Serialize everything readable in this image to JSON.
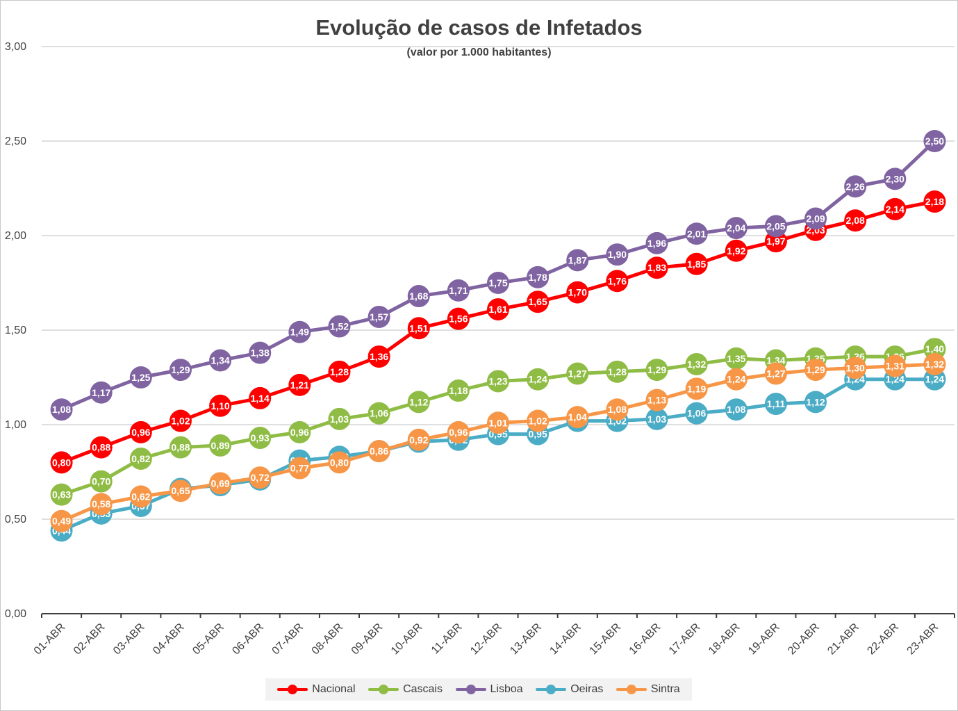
{
  "chart_data": {
    "type": "line",
    "title": "Evolução de casos de Infetados",
    "subtitle": "(valor por  1.000 habitantes)",
    "xlabel": "",
    "ylabel": "",
    "ylim": [
      0,
      3
    ],
    "y_ticks": [
      "0,00",
      "0,50",
      "1,00",
      "1,50",
      "2,00",
      "2,50",
      "3,00"
    ],
    "grid": true,
    "legend_position": "bottom",
    "categories": [
      "01-ABR",
      "02-ABR",
      "03-ABR",
      "04-ABR",
      "05-ABR",
      "06-ABR",
      "07-ABR",
      "08-ABR",
      "09-ABR",
      "10-ABR",
      "11-ABR",
      "12-ABR",
      "13-ABR",
      "14-ABR",
      "15-ABR",
      "16-ABR",
      "17-ABR",
      "18-ABR",
      "19-ABR",
      "20-ABR",
      "21-ABR",
      "22-ABR",
      "23-ABR"
    ],
    "series": [
      {
        "name": "Nacional",
        "color": "#ff0000",
        "values": [
          0.8,
          0.88,
          0.96,
          1.02,
          1.1,
          1.14,
          1.21,
          1.28,
          1.36,
          1.51,
          1.56,
          1.61,
          1.65,
          1.7,
          1.76,
          1.83,
          1.85,
          1.92,
          1.97,
          2.03,
          2.08,
          2.14,
          2.18
        ]
      },
      {
        "name": "Cascais",
        "color": "#8fbc45",
        "values": [
          0.63,
          0.7,
          0.82,
          0.88,
          0.89,
          0.93,
          0.96,
          1.03,
          1.06,
          1.12,
          1.18,
          1.23,
          1.24,
          1.27,
          1.28,
          1.29,
          1.32,
          1.35,
          1.34,
          1.35,
          1.36,
          1.36,
          1.4
        ]
      },
      {
        "name": "Lisboa",
        "color": "#8064a2",
        "values": [
          1.08,
          1.17,
          1.25,
          1.29,
          1.34,
          1.38,
          1.49,
          1.52,
          1.57,
          1.68,
          1.71,
          1.75,
          1.78,
          1.87,
          1.9,
          1.96,
          2.01,
          2.04,
          2.05,
          2.09,
          2.26,
          2.3,
          2.5
        ]
      },
      {
        "name": "Oeiras",
        "color": "#4bacc6",
        "values": [
          0.44,
          0.53,
          0.57,
          0.66,
          0.68,
          0.71,
          0.81,
          0.83,
          0.86,
          0.91,
          0.92,
          0.95,
          0.95,
          1.02,
          1.02,
          1.03,
          1.06,
          1.08,
          1.11,
          1.12,
          1.24,
          1.24,
          1.24
        ]
      },
      {
        "name": "Sintra",
        "color": "#f79646",
        "values": [
          0.49,
          0.58,
          0.62,
          0.65,
          0.69,
          0.72,
          0.77,
          0.8,
          0.86,
          0.92,
          0.96,
          1.01,
          1.02,
          1.04,
          1.08,
          1.13,
          1.19,
          1.24,
          1.27,
          1.29,
          1.3,
          1.31,
          1.32
        ]
      }
    ]
  }
}
